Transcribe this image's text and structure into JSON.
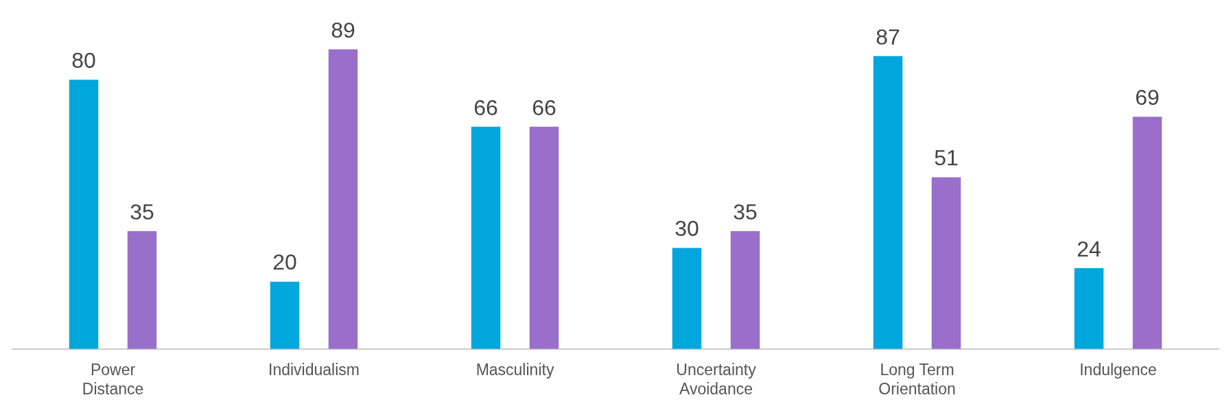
{
  "chart_data": {
    "type": "bar",
    "categories": [
      "Power Distance",
      "Individualism",
      "Masculinity",
      "Uncertainty Avoidance",
      "Long Term Orientation",
      "Indulgence"
    ],
    "series": [
      {
        "color": "#00a6dc",
        "values": [
          80,
          20,
          66,
          30,
          87,
          24
        ]
      },
      {
        "color": "#9a6fcb",
        "values": [
          35,
          89,
          66,
          35,
          51,
          69
        ]
      }
    ],
    "data_labels": true,
    "grid": false,
    "legend": false
  }
}
